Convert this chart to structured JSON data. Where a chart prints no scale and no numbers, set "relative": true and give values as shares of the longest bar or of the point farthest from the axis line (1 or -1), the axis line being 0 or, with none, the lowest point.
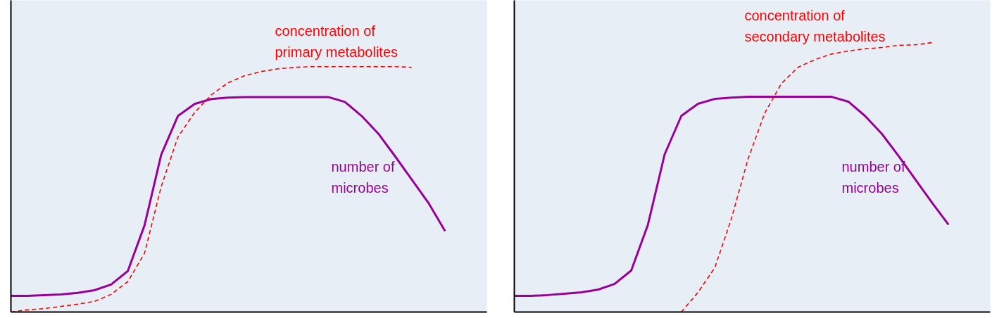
{
  "chart_data": [
    {
      "type": "line",
      "relative": true,
      "legend": false,
      "categories": [
        null,
        null,
        null,
        null,
        null,
        null,
        null,
        null,
        null,
        null,
        null,
        null,
        null,
        null,
        null,
        null,
        null,
        null,
        null,
        null,
        null,
        null,
        null,
        null,
        null,
        null,
        null,
        null,
        null
      ],
      "series": [
        {
          "name": "number of\nmicrobes",
          "color": "#990099",
          "line_style": "solid",
          "values": [
            0.066,
            0.066,
            0.069,
            0.072,
            0.078,
            0.089,
            0.112,
            0.167,
            0.353,
            0.641,
            0.799,
            0.848,
            0.868,
            0.874,
            0.876,
            0.876,
            0.876,
            0.876,
            0.876,
            0.876,
            0.856,
            0.799,
            0.727,
            0.635,
            0.54,
            0.445,
            0.33,
            null,
            null
          ]
        },
        {
          "name": "concentration of\nprimary metabolites",
          "color": "#ff0000",
          "line_style": "dashed",
          "values": [
            0,
            0.009,
            0.014,
            0.023,
            0.032,
            0.043,
            0.072,
            0.124,
            0.239,
            0.511,
            0.713,
            0.813,
            0.885,
            0.934,
            0.963,
            0.98,
            0.991,
            0.997,
            1,
            1,
            1,
            1,
            1,
            1,
            0.997,
            null,
            null,
            null,
            null
          ]
        }
      ]
    },
    {
      "type": "line",
      "relative": true,
      "legend": false,
      "categories": [
        null,
        null,
        null,
        null,
        null,
        null,
        null,
        null,
        null,
        null,
        null,
        null,
        null,
        null,
        null,
        null,
        null,
        null,
        null,
        null,
        null,
        null,
        null,
        null,
        null,
        null,
        null,
        null,
        null
      ],
      "series": [
        {
          "name": "number of\nmicrobes",
          "color": "#990099",
          "line_style": "solid",
          "values": [
            0.06,
            0.06,
            0.063,
            0.068,
            0.073,
            0.083,
            0.104,
            0.154,
            0.324,
            0.585,
            0.728,
            0.773,
            0.791,
            0.796,
            0.799,
            0.799,
            0.799,
            0.799,
            0.799,
            0.799,
            0.781,
            0.728,
            0.662,
            0.58,
            0.493,
            0.407,
            0.324,
            null,
            null
          ]
        },
        {
          "name": "concentration of\nsecondary metabolites",
          "color": "#ff0000",
          "line_style": "dashed",
          "values": [
            null,
            null,
            null,
            null,
            null,
            null,
            null,
            null,
            null,
            null,
            0,
            0.073,
            0.164,
            0.347,
            0.569,
            0.739,
            0.849,
            0.909,
            0.937,
            0.958,
            0.969,
            0.977,
            0.982,
            0.99,
            0.992,
            1,
            null,
            null,
            null
          ]
        }
      ]
    }
  ]
}
